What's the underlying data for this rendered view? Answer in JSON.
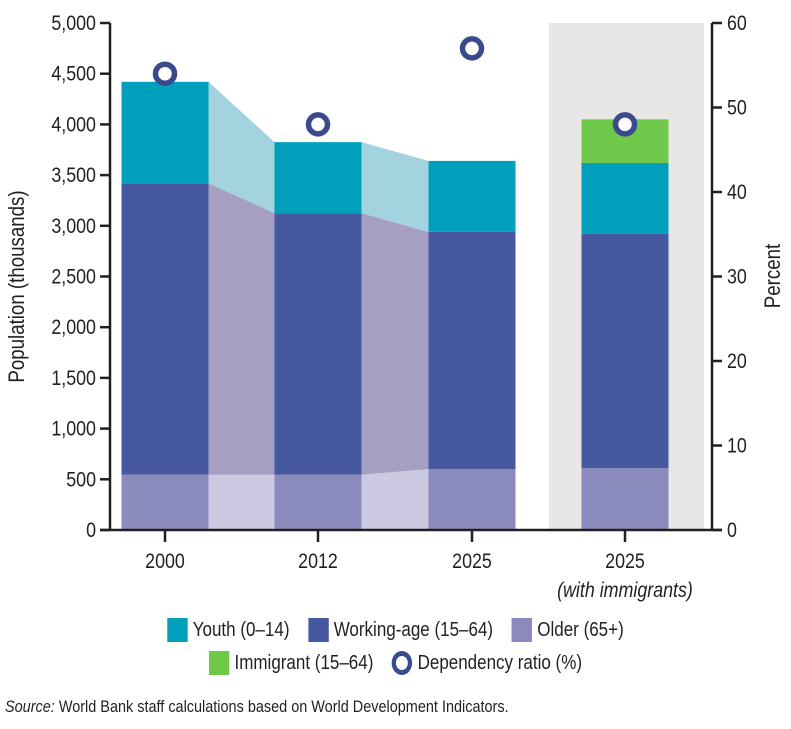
{
  "chart_data": {
    "type": "bar",
    "stacked": true,
    "categories": [
      "2000",
      "2012",
      "2025",
      "2025"
    ],
    "category_sublabels": [
      "",
      "",
      "",
      "(with immigrants)"
    ],
    "highlighted_category_index": 3,
    "series": [
      {
        "name": "Older (65+)",
        "color": "#8a8abd",
        "connector_color": "#cccae3",
        "values": [
          545,
          545,
          600,
          610
        ]
      },
      {
        "name": "Working-age (15–64)",
        "color": "#46589f",
        "connector_color": "#a59fc1",
        "values": [
          2875,
          2580,
          2340,
          2310
        ]
      },
      {
        "name": "Youth (0–14)",
        "color": "#00a0bd",
        "connector_color": "#a3d3de",
        "values": [
          1000,
          700,
          700,
          700
        ]
      },
      {
        "name": "Immigrant (15–64)",
        "color": "#6fc84a",
        "values": [
          0,
          0,
          0,
          430
        ]
      }
    ],
    "dependency_ratio": {
      "name": "Dependency ratio (%)",
      "axis": "right",
      "color": "#3b4a8c",
      "values": [
        54,
        48,
        57,
        48
      ]
    },
    "ylabel": "Population (thousands)",
    "ylim": [
      0,
      5000
    ],
    "yticks": [
      "0",
      "500",
      "1,000",
      "1,500",
      "2,000",
      "2,500",
      "3,000",
      "3,500",
      "4,000",
      "4,500",
      "5,000"
    ],
    "y2label": "Percent",
    "y2lim": [
      0,
      60
    ],
    "y2ticks": [
      "0",
      "10",
      "20",
      "30",
      "40",
      "50",
      "60"
    ],
    "legend_position": "bottom",
    "grid": false
  },
  "legend": {
    "row1": [
      {
        "label": "Youth (0–14)",
        "color": "#00a0bd"
      },
      {
        "label": "Working-age (15–64)",
        "color": "#46589f"
      },
      {
        "label": "Older (65+)",
        "color": "#8a8abd"
      }
    ],
    "row2": [
      {
        "label": "Immigrant (15–64)",
        "color": "#6fc84a"
      },
      {
        "label": "Dependency ratio (%)",
        "marker": "ring"
      }
    ]
  },
  "source": {
    "prefix": "Source:",
    "text": " World Bank staff calculations based on World Development Indicators."
  }
}
